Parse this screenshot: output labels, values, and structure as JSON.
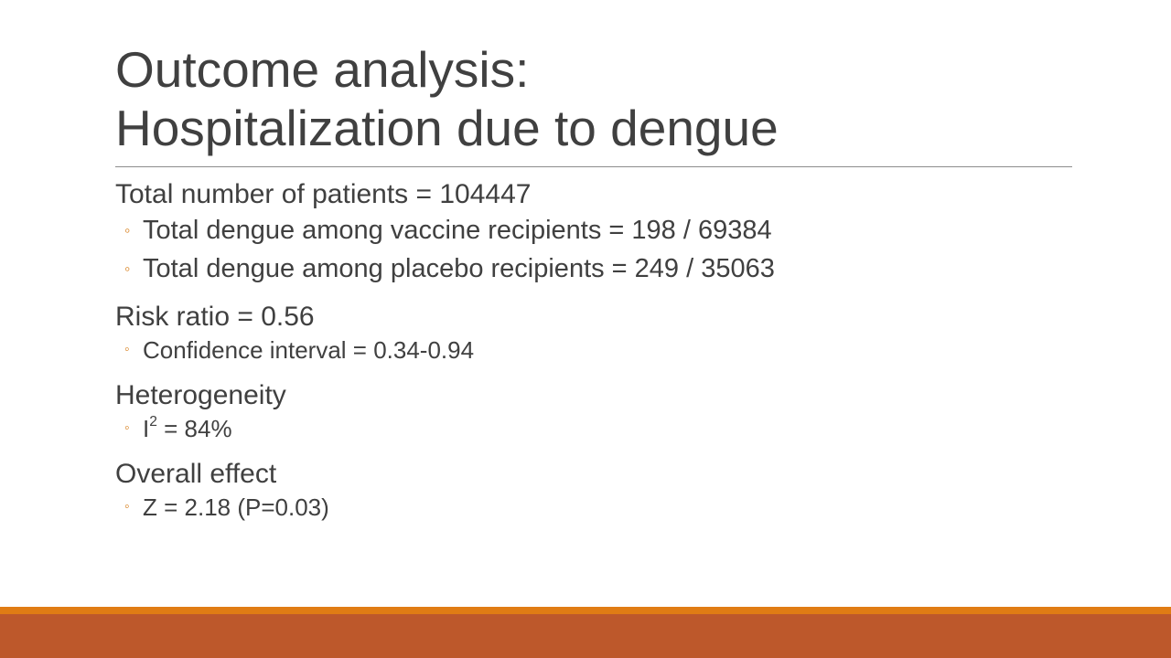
{
  "title": {
    "line1": "Outcome analysis:",
    "line2": "Hospitalization due to dengue"
  },
  "sections": [
    {
      "heading": "Total number of patients = 104447",
      "items": [
        "Total dengue among vaccine recipients = 198 / 69384",
        "Total dengue among placebo recipients = 249 / 35063"
      ]
    },
    {
      "heading": "Risk ratio = 0.56",
      "items": [
        "Confidence interval = 0.34-0.94"
      ]
    },
    {
      "heading": "Heterogeneity",
      "i2_prefix": "I",
      "i2_sup": "2",
      "i2_value": " = 84%"
    },
    {
      "heading": "Overall effect",
      "items": [
        "Z = 2.18 (P=0.03)"
      ]
    }
  ],
  "bullet_glyph": "◦",
  "colors": {
    "accent_orange": "#e07c14",
    "footer_rust": "#bd582b",
    "text": "#404040"
  }
}
